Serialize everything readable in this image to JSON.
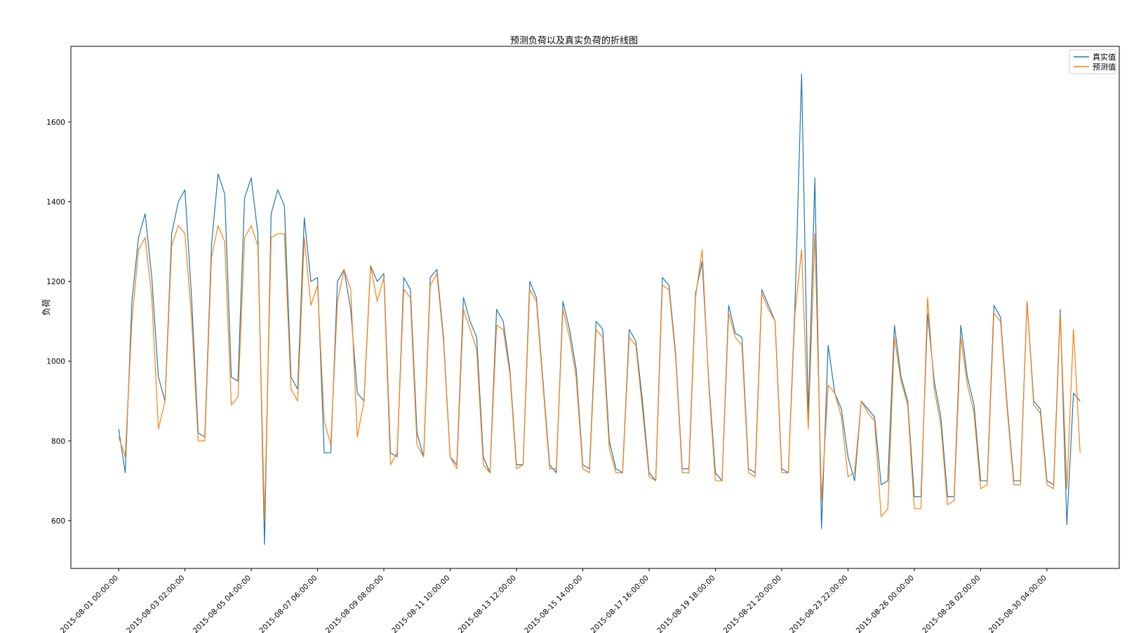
{
  "chart_data": {
    "type": "line",
    "title": "预测负荷以及真实负荷的折线图",
    "xlabel": "",
    "ylabel": "负荷",
    "ylim": [
      480,
      1790
    ],
    "yticks": [
      600,
      800,
      1000,
      1200,
      1400,
      1600
    ],
    "xlim": [
      -7.2,
      150.9
    ],
    "x_start": "2015-08-01 00:00:00",
    "x_step_hours": 5,
    "xticks": [
      {
        "x": 0,
        "label": "2015-08-01 00:00:00"
      },
      {
        "x": 10,
        "label": "2015-08-03 02:00:00"
      },
      {
        "x": 20,
        "label": "2015-08-05 04:00:00"
      },
      {
        "x": 30,
        "label": "2015-08-07 06:00:00"
      },
      {
        "x": 40,
        "label": "2015-08-09 08:00:00"
      },
      {
        "x": 50,
        "label": "2015-08-11 10:00:00"
      },
      {
        "x": 60,
        "label": "2015-08-13 12:00:00"
      },
      {
        "x": 70,
        "label": "2015-08-15 14:00:00"
      },
      {
        "x": 80,
        "label": "2015-08-17 16:00:00"
      },
      {
        "x": 90,
        "label": "2015-08-19 18:00:00"
      },
      {
        "x": 100,
        "label": "2015-08-21 20:00:00"
      },
      {
        "x": 110,
        "label": "2015-08-23 22:00:00"
      },
      {
        "x": 120,
        "label": "2015-08-26 00:00:00"
      },
      {
        "x": 130,
        "label": "2015-08-28 02:00:00"
      },
      {
        "x": 140,
        "label": "2015-08-30 04:00:00"
      }
    ],
    "legend_position": "top-right",
    "series": [
      {
        "name": "真实值",
        "color": "#1f77b4",
        "values": [
          830,
          720,
          1150,
          1310,
          1370,
          1210,
          960,
          900,
          1320,
          1400,
          1430,
          1160,
          820,
          810,
          1290,
          1470,
          1420,
          960,
          950,
          1410,
          1460,
          1320,
          540,
          1370,
          1430,
          1390,
          960,
          930,
          1360,
          1200,
          1210,
          770,
          770,
          1200,
          1230,
          1130,
          920,
          900,
          1240,
          1200,
          1220,
          770,
          760,
          1210,
          1180,
          820,
          760,
          1210,
          1230,
          1060,
          760,
          740,
          1160,
          1100,
          1060,
          760,
          720,
          1130,
          1100,
          980,
          740,
          740,
          1200,
          1160,
          950,
          740,
          720,
          1150,
          1080,
          980,
          740,
          730,
          1100,
          1080,
          800,
          730,
          720,
          1080,
          1050,
          900,
          720,
          700,
          1210,
          1190,
          1020,
          730,
          730,
          1170,
          1250,
          950,
          720,
          700,
          1140,
          1070,
          1060,
          730,
          720,
          1180,
          1140,
          1100,
          730,
          720,
          1140,
          1720,
          860,
          1460,
          580,
          1040,
          920,
          880,
          760,
          700,
          900,
          880,
          860,
          690,
          700,
          1090,
          960,
          900,
          660,
          660,
          1120,
          950,
          860,
          660,
          660,
          1090,
          960,
          890,
          700,
          700,
          1140,
          1110,
          890,
          700,
          700,
          1150,
          900,
          880,
          700,
          690,
          1130,
          590,
          920,
          900
        ]
      },
      {
        "name": "预测值",
        "color": "#ff7f0e",
        "values": [
          810,
          760,
          1100,
          1280,
          1310,
          1160,
          830,
          900,
          1290,
          1340,
          1320,
          1110,
          800,
          800,
          1260,
          1340,
          1300,
          890,
          910,
          1310,
          1340,
          1290,
          600,
          1310,
          1320,
          1320,
          930,
          900,
          1310,
          1140,
          1190,
          850,
          790,
          1150,
          1230,
          1180,
          810,
          900,
          1240,
          1150,
          1210,
          740,
          770,
          1180,
          1160,
          790,
          760,
          1190,
          1220,
          1050,
          760,
          730,
          1130,
          1080,
          1030,
          740,
          720,
          1090,
          1080,
          970,
          730,
          740,
          1180,
          1150,
          940,
          730,
          730,
          1130,
          1060,
          960,
          730,
          720,
          1080,
          1060,
          780,
          720,
          720,
          1060,
          1040,
          880,
          710,
          700,
          1190,
          1180,
          1010,
          720,
          720,
          1160,
          1280,
          940,
          700,
          700,
          1120,
          1060,
          1040,
          720,
          710,
          1170,
          1130,
          1100,
          720,
          720,
          1120,
          1280,
          830,
          1320,
          650,
          940,
          920,
          860,
          710,
          720,
          900,
          870,
          850,
          610,
          630,
          1060,
          950,
          890,
          630,
          630,
          1160,
          930,
          840,
          640,
          650,
          1060,
          940,
          870,
          680,
          690,
          1120,
          1100,
          880,
          690,
          690,
          1150,
          890,
          870,
          690,
          680,
          1120,
          680,
          1080,
          770
        ]
      }
    ]
  }
}
